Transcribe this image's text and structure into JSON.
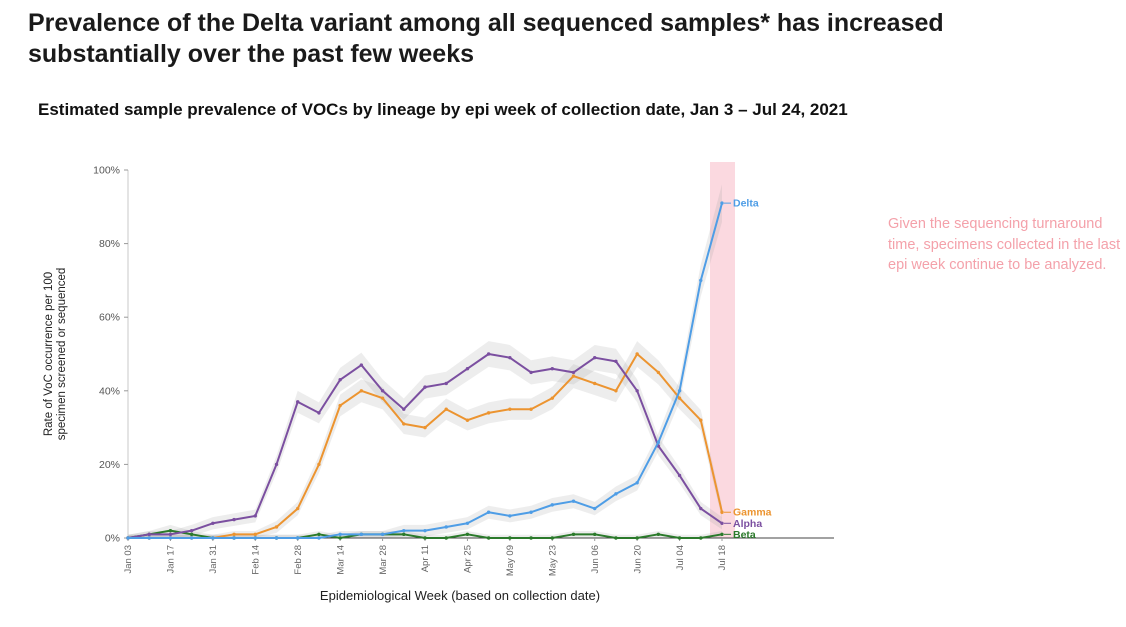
{
  "page": {
    "title": "Prevalence of the Delta variant among all sequenced samples* has increased substantially over the past few weeks"
  },
  "chart_data": {
    "type": "line",
    "title": "Estimated sample prevalence of VOCs by lineage by epi week of collection date, Jan 3 – Jul 24, 2021",
    "xlabel": "Epidemiological Week (based on collection date)",
    "ylabel": "Rate of VoC occurrence per 100 specimen screened or sequenced",
    "ylabel_lines": [
      "Rate of VoC occurrence per 100",
      "specimen screened or sequenced"
    ],
    "ylim": [
      0,
      100
    ],
    "y_ticks": [
      "0%",
      "20%",
      "40%",
      "60%",
      "80%",
      "100%"
    ],
    "x": [
      "Jan 03",
      "Jan 10",
      "Jan 17",
      "Jan 24",
      "Jan 31",
      "Feb 07",
      "Feb 14",
      "Feb 21",
      "Feb 28",
      "Mar 07",
      "Mar 14",
      "Mar 21",
      "Mar 28",
      "Apr 04",
      "Apr 11",
      "Apr 18",
      "Apr 25",
      "May 02",
      "May 09",
      "May 16",
      "May 23",
      "May 30",
      "Jun 06",
      "Jun 13",
      "Jun 20",
      "Jun 27",
      "Jul 04",
      "Jul 11",
      "Jul 18"
    ],
    "x_tick_every": 2,
    "grid": false,
    "legend_position": "right-of-line-ends",
    "series": [
      {
        "name": "Beta",
        "color": "#2B7A2B",
        "values": [
          0,
          1,
          2,
          1,
          0,
          0,
          0,
          0,
          0,
          1,
          0,
          1,
          1,
          1,
          0,
          0,
          1,
          0,
          0,
          0,
          0,
          1,
          1,
          0,
          0,
          1,
          0,
          0,
          1
        ]
      },
      {
        "name": "Gamma",
        "color": "#EC9430",
        "values": [
          0,
          0,
          0,
          0,
          0,
          1,
          1,
          3,
          8,
          20,
          36,
          40,
          38,
          31,
          30,
          35,
          32,
          34,
          35,
          35,
          38,
          44,
          42,
          40,
          50,
          45,
          38,
          32,
          7
        ]
      },
      {
        "name": "Alpha",
        "color": "#7B4FA0",
        "values": [
          0,
          1,
          1,
          2,
          4,
          5,
          6,
          20,
          37,
          34,
          43,
          47,
          40,
          35,
          41,
          42,
          46,
          50,
          49,
          45,
          46,
          45,
          49,
          48,
          40,
          25,
          17,
          8,
          4
        ]
      },
      {
        "name": "Delta",
        "color": "#4E9DE6",
        "values": [
          0,
          0,
          0,
          0,
          0,
          0,
          0,
          0,
          0,
          0,
          1,
          1,
          1,
          2,
          2,
          3,
          4,
          7,
          6,
          7,
          9,
          10,
          8,
          12,
          15,
          26,
          40,
          70,
          91
        ]
      }
    ],
    "confidence_band_color": "#9a9a9a",
    "highlight_band": {
      "label": "last epi week",
      "color": "#FAD2DA"
    },
    "annotation": "Given the sequencing turnaround time, specimens collected in the last epi week continue to be analyzed.",
    "annotation_color": "#F4A1AA"
  }
}
